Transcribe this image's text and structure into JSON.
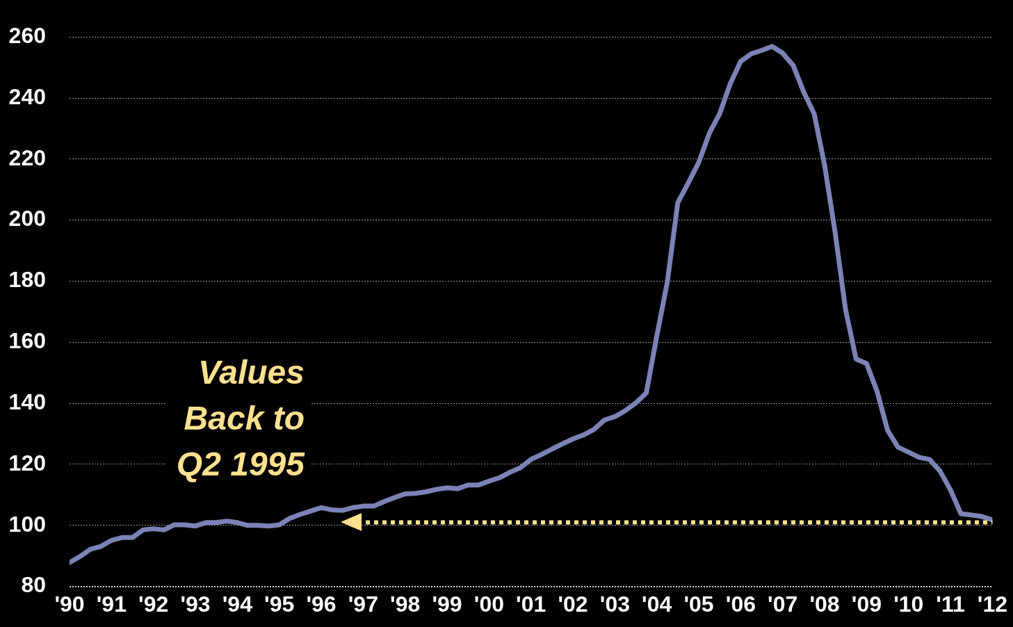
{
  "chart_data": {
    "type": "line",
    "x": [
      1990,
      1990.25,
      1990.5,
      1990.75,
      1991,
      1991.25,
      1991.5,
      1991.75,
      1992,
      1992.25,
      1992.5,
      1992.75,
      1993,
      1993.25,
      1993.5,
      1993.75,
      1994,
      1994.25,
      1994.5,
      1994.75,
      1995,
      1995.25,
      1995.5,
      1995.75,
      1996,
      1996.25,
      1996.5,
      1996.75,
      1997,
      1997.25,
      1997.5,
      1997.75,
      1998,
      1998.25,
      1998.5,
      1998.75,
      1999,
      1999.25,
      1999.5,
      1999.75,
      2000,
      2000.25,
      2000.5,
      2000.75,
      2001,
      2001.25,
      2001.5,
      2001.75,
      2002,
      2002.25,
      2002.5,
      2002.75,
      2003,
      2003.25,
      2003.5,
      2003.75,
      2004,
      2004.25,
      2004.5,
      2004.75,
      2005,
      2005.25,
      2005.5,
      2005.75,
      2006,
      2006.25,
      2006.5,
      2006.75,
      2007,
      2007.25,
      2007.5,
      2007.75,
      2008,
      2008.25,
      2008.5,
      2008.75,
      2009,
      2009.25,
      2009.5,
      2009.75,
      2010,
      2010.25,
      2010.5,
      2010.75,
      2011,
      2011.25,
      2011.5,
      2011.75,
      2012
    ],
    "series": [
      {
        "color": "#7b82b5",
        "values": [
          87.8,
          89.8,
          92.2,
          93.1,
          95.1,
          96,
          96,
          98.5,
          98.9,
          98.5,
          100.2,
          100.2,
          99.8,
          100.9,
          100.9,
          101.4,
          100.9,
          100,
          100,
          99.8,
          100.2,
          102.3,
          103.6,
          104.7,
          105.8,
          105.1,
          104.9,
          105.8,
          106.3,
          106.3,
          107.8,
          109.1,
          110.3,
          110.5,
          111,
          111.8,
          112.3,
          112,
          113.2,
          113.2,
          114.5,
          115.6,
          117.4,
          118.9,
          121.6,
          123.2,
          125,
          126.7,
          128.3,
          129.6,
          131.4,
          134.5,
          135.6,
          137.6,
          140.1,
          143.4,
          162.1,
          179.7,
          205.7,
          212.2,
          218.9,
          228.4,
          234.9,
          244.7,
          252,
          254.5,
          255.6,
          256.9,
          254.7,
          250.7,
          242,
          234.9,
          218,
          196,
          170.6,
          154.5,
          153,
          143.9,
          131.2,
          125.6,
          124,
          122.3,
          121.6,
          117.8,
          111.6,
          103.8,
          103.4,
          102.9,
          101.8
        ]
      }
    ],
    "xlim": [
      1990,
      2012
    ],
    "xticks": [
      {
        "value": 1990,
        "label": "'90"
      },
      {
        "value": 1991,
        "label": "'91"
      },
      {
        "value": 1992,
        "label": "'92"
      },
      {
        "value": 1993,
        "label": "'93"
      },
      {
        "value": 1994,
        "label": "'94"
      },
      {
        "value": 1995,
        "label": "'95"
      },
      {
        "value": 1996,
        "label": "'96"
      },
      {
        "value": 1997,
        "label": "'97"
      },
      {
        "value": 1998,
        "label": "'98"
      },
      {
        "value": 1999,
        "label": "'99"
      },
      {
        "value": 2000,
        "label": "'00"
      },
      {
        "value": 2001,
        "label": "'01"
      },
      {
        "value": 2002,
        "label": "'02"
      },
      {
        "value": 2003,
        "label": "'03"
      },
      {
        "value": 2004,
        "label": "'04"
      },
      {
        "value": 2005,
        "label": "'05"
      },
      {
        "value": 2006,
        "label": "'06"
      },
      {
        "value": 2007,
        "label": "'07"
      },
      {
        "value": 2008,
        "label": "'08"
      },
      {
        "value": 2009,
        "label": "'09"
      },
      {
        "value": 2010,
        "label": "'10"
      },
      {
        "value": 2011,
        "label": "'11"
      },
      {
        "value": 2012,
        "label": "'12"
      }
    ],
    "ylim": [
      80,
      260
    ],
    "yticks": [
      80,
      100,
      120,
      140,
      160,
      180,
      200,
      220,
      240,
      260
    ],
    "grid": "y",
    "legend": false,
    "marker": "none",
    "line_style": "solid",
    "ref_lines": [
      {
        "axis": "y",
        "value": 101,
        "color": "#ffe08f",
        "line_style": "dotted"
      }
    ],
    "annotations": [
      "Values Back to Q2 1995"
    ]
  }
}
